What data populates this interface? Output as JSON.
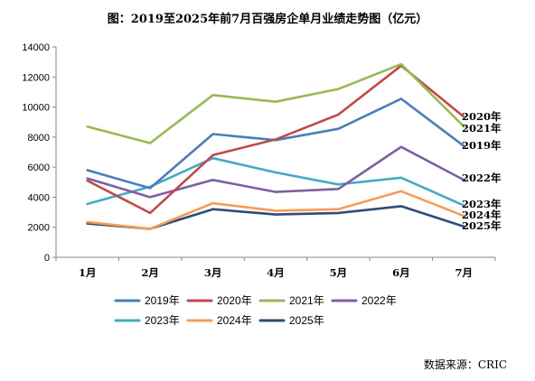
{
  "chart_data": {
    "type": "line",
    "title": "图：2019至2025年前7月百强房企单月业绩走势图（亿元）",
    "categories": [
      "1月",
      "2月",
      "3月",
      "4月",
      "5月",
      "6月",
      "7月"
    ],
    "ylim": [
      0,
      14000
    ],
    "yticks": [
      0,
      2000,
      4000,
      6000,
      8000,
      10000,
      12000,
      14000
    ],
    "grid": false,
    "legend_position": "bottom",
    "source": "数据来源：CRIC",
    "series": [
      {
        "name": "2019年",
        "color": "#4a7ebb",
        "values": [
          5800,
          4600,
          8200,
          7800,
          8550,
          10550,
          7400
        ]
      },
      {
        "name": "2020年",
        "color": "#be4b48",
        "values": [
          5100,
          2950,
          6800,
          7850,
          9500,
          12750,
          9350
        ]
      },
      {
        "name": "2021年",
        "color": "#98b954",
        "values": [
          8700,
          7600,
          10800,
          10350,
          11200,
          12850,
          8700
        ]
      },
      {
        "name": "2022年",
        "color": "#7d60a0",
        "values": [
          5250,
          4000,
          5150,
          4350,
          4550,
          7350,
          5150
        ]
      },
      {
        "name": "2023年",
        "color": "#46aac5",
        "values": [
          3550,
          4700,
          6600,
          5650,
          4850,
          5300,
          3450
        ]
      },
      {
        "name": "2024年",
        "color": "#f59d56",
        "values": [
          2350,
          1900,
          3600,
          3100,
          3200,
          4400,
          2750
        ]
      },
      {
        "name": "2025年",
        "color": "#2c4d75",
        "values": [
          2250,
          1900,
          3200,
          2850,
          2950,
          3400,
          2050
        ]
      }
    ],
    "end_labels": [
      {
        "series": "2020年",
        "text": "2020年"
      },
      {
        "series": "2021年",
        "text": "2021年"
      },
      {
        "series": "2019年",
        "text": "2019年"
      },
      {
        "series": "2022年",
        "text": "2022年"
      },
      {
        "series": "2023年",
        "text": "2023年"
      },
      {
        "series": "2024年",
        "text": "2024年"
      },
      {
        "series": "2025年",
        "text": "2025年"
      }
    ]
  }
}
